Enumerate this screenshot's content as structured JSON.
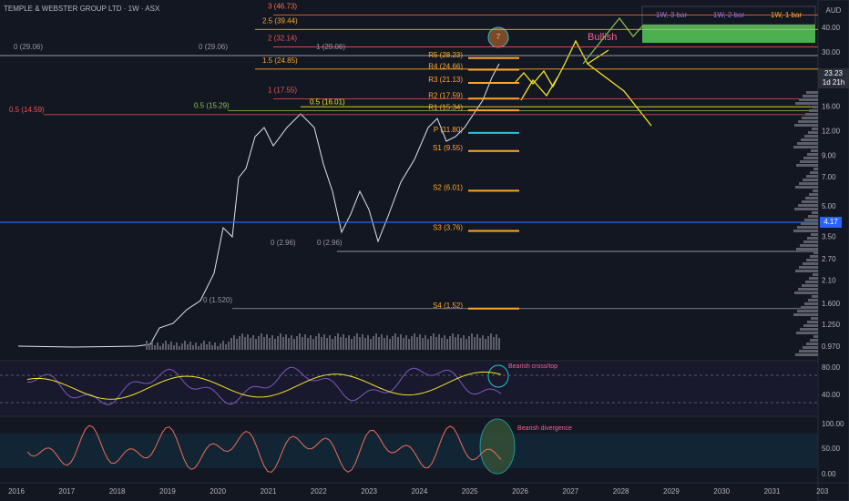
{
  "header": {
    "title": "TEMPLE & WEBSTER GROUP LTD · 1W · ASX",
    "currency": "AUD"
  },
  "price_axis": {
    "ticks": [
      "40.00",
      "30.00",
      "16.00",
      "12.00",
      "9.00",
      "7.00",
      "5.00",
      "3.50",
      "2.70",
      "2.10",
      "1.600",
      "1.250",
      "0.970"
    ],
    "last_price": "23.23",
    "countdown": "1d 21h",
    "marker": "4.17"
  },
  "rsi_axis": [
    "80.00",
    "40.00"
  ],
  "stoch_axis": [
    "100.00",
    "50.00",
    "0.00"
  ],
  "time_axis": [
    "2016",
    "2017",
    "2018",
    "2019",
    "2020",
    "2021",
    "2022",
    "2023",
    "2024",
    "2025",
    "2026",
    "2027",
    "2028",
    "2029",
    "2030",
    "2031",
    "203"
  ],
  "fib_levels": [
    "3 (46.73)",
    "2.5 (39.44)",
    "2 (32.14)",
    "1.5 (24.85)",
    "1 (17.55)",
    "0.5 (16.01)",
    "0.5 (15.29)",
    "0.5 (14.59)",
    "0 (29.06)",
    "0 (29.06)",
    "1 (29.06)",
    "0 (2.96)",
    "0 (2.96)",
    "0 (1.520)"
  ],
  "pivots": [
    "R5 (28.23)",
    "R4 (24.66)",
    "R3 (21.13)",
    "R2 (17.59)",
    "R1 (15.34)",
    "P (11.80)",
    "S1 (9.55)",
    "S2 (6.01)",
    "S3 (3.76)",
    "S4 (1.52)"
  ],
  "annotations": {
    "wave": "7",
    "bullish": "Bullish",
    "rsi_note": "Bearish cross/top",
    "stoch_note": "Bearish divergence"
  },
  "table": {
    "headers": [
      "1W, 3 bar",
      "1W, 2 bar",
      "1W, 1 bar"
    ]
  }
}
